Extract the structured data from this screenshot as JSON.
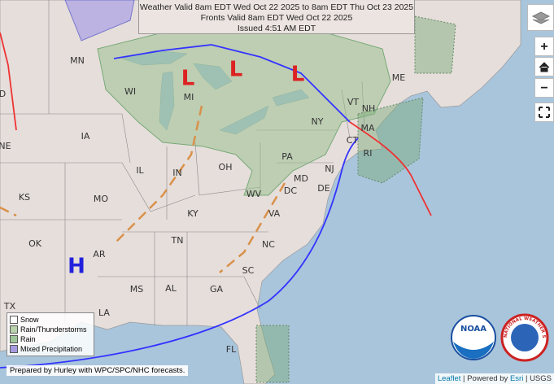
{
  "header": {
    "lines": [
      "Weather Valid 8am EDT Wed Oct 22 2025 to 8am EDT Thu Oct 23 2025",
      "Fronts Valid 8am EDT Wed Oct 22 2025",
      "Issued 4:51 AM EDT"
    ]
  },
  "map": {
    "state_labels": [
      "MN",
      "WI",
      "MI",
      "IA",
      "IL",
      "IN",
      "OH",
      "PA",
      "NY",
      "VT",
      "NH",
      "ME",
      "MA",
      "CT",
      "RI",
      "NJ",
      "MD",
      "DE",
      "DC",
      "WV",
      "VA",
      "KY",
      "TN",
      "NC",
      "SC",
      "GA",
      "AL",
      "MS",
      "AR",
      "MO",
      "KS",
      "OK",
      "NE",
      "TX",
      "LA",
      "FL",
      "D"
    ],
    "pressure_centers": [
      "L",
      "L",
      "L",
      "H"
    ]
  },
  "legend": {
    "items": [
      "Snow",
      "Rain/Thunderstorms",
      "Rain",
      "Mixed Precipitation"
    ]
  },
  "controls": {
    "zoom_in": "+",
    "zoom_out": "−"
  },
  "footer": {
    "credit": "Prepared by Hurley with WPC/SPC/NHC forecasts."
  },
  "attribution": {
    "leaflet": "Leaflet",
    "powered": "| Powered by",
    "esri": "Esri",
    "usgs": "| USGS"
  },
  "logos": {
    "noaa": "NOAA",
    "nws": "NATIONAL WEATHER SERVICE"
  }
}
